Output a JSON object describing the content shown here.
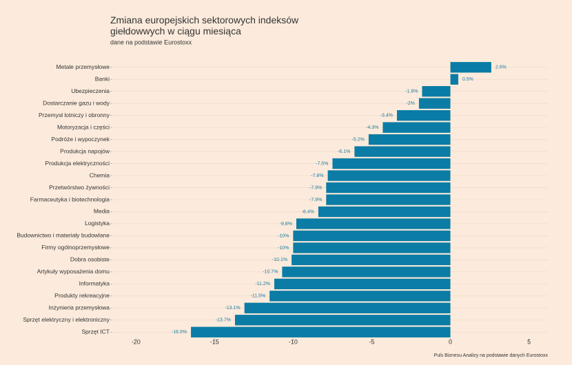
{
  "chart_data": {
    "type": "bar",
    "orientation": "horizontal",
    "title": "Zmiana europejskich sektorowych indeksów\ngiełdowwych w ciągu miesiąca",
    "subtitle": "dane na podstawie Eurostoxx",
    "caption": "Puls Biznesu Analizy na podstawie danych Eurostoxx",
    "categories": [
      "Metale przemysłowe",
      "Banki",
      "Ubezpieczenia",
      "Dostarczanie gazu i wody",
      "Przemysł lotniczy i obronny",
      "Motoryzacja i części",
      "Podróże i wypoczynek",
      "Produkcja napojów",
      "Produkcja elektryczności",
      "Chemia",
      "Przetwórstwo żywności",
      "Farmaceutyka i biotechnologia",
      "Media",
      "Logistyka",
      "Budownictwo i materiały budowlane",
      "Firmy ogólnoprzemysłowe",
      "Dobra osobiste",
      "Artykuły wyposażenia domu",
      "Informatyka",
      "Produkty rekreacyjne",
      "Inżynieria przemysłowa",
      "Sprzęt elektryczny i elektroniczny",
      "Sprzęt ICT"
    ],
    "values": [
      2.6,
      0.5,
      -1.8,
      -2,
      -3.4,
      -4.3,
      -5.2,
      -6.1,
      -7.5,
      -7.8,
      -7.9,
      -7.9,
      -8.4,
      -9.8,
      -10,
      -10,
      -10.1,
      -10.7,
      -11.2,
      -11.5,
      -13.1,
      -13.7,
      -16.5
    ],
    "value_labels": [
      "2.6%",
      "0.5%",
      "-1.8%",
      "-2%",
      "-3.4%",
      "-4.3%",
      "-5.2%",
      "-6.1%",
      "-7.5%",
      "-7.8%",
      "-7.9%",
      "-7.9%",
      "-8.4%",
      "-9.8%",
      "-10%",
      "-10%",
      "-10.1%",
      "-10.7%",
      "-11.2%",
      "-11.5%",
      "-13.1%",
      "-13.7%",
      "-16.5%"
    ],
    "color": "#0b7ca5",
    "label_color": "#1f7fa3",
    "xlim": [
      -21.5,
      6.2
    ],
    "xticks": [
      -20,
      -15,
      -10,
      -5,
      0,
      5
    ]
  }
}
